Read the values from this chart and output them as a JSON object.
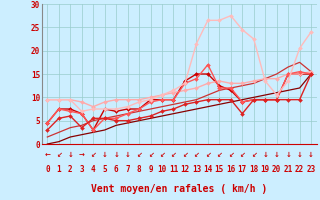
{
  "title": "",
  "xlabel": "Vent moyen/en rafales ( km/h )",
  "xlim_min": -0.5,
  "xlim_max": 23.5,
  "ylim_min": 0,
  "ylim_max": 30,
  "xticks": [
    0,
    1,
    2,
    3,
    4,
    5,
    6,
    7,
    8,
    9,
    10,
    11,
    12,
    13,
    14,
    15,
    16,
    17,
    18,
    19,
    20,
    21,
    22,
    23
  ],
  "yticks": [
    0,
    5,
    10,
    15,
    20,
    25,
    30
  ],
  "bg_color": "#cceeff",
  "grid_color": "#99cccc",
  "series": [
    {
      "x": [
        0,
        1,
        2,
        3,
        4,
        5,
        6,
        7,
        8,
        9,
        10,
        11,
        12,
        13,
        14,
        15,
        16,
        17,
        18,
        19,
        20,
        21,
        22,
        23
      ],
      "y": [
        4.5,
        7.5,
        7.5,
        6.5,
        3.0,
        7.5,
        7.0,
        7.5,
        7.5,
        9.5,
        9.5,
        9.5,
        13.5,
        15.0,
        15.0,
        12.5,
        11.5,
        9.0,
        9.5,
        9.5,
        9.5,
        15.0,
        15.0,
        15.0
      ],
      "color": "#cc0000",
      "lw": 1.0,
      "marker": "D",
      "ms": 2.0
    },
    {
      "x": [
        0,
        1,
        2,
        3,
        4,
        5,
        6,
        7,
        8,
        9,
        10,
        11,
        12,
        13,
        14,
        15,
        16,
        17,
        18,
        19,
        20,
        21,
        22,
        23
      ],
      "y": [
        0.0,
        0.5,
        1.5,
        2.0,
        2.5,
        3.0,
        4.0,
        4.5,
        5.0,
        5.5,
        6.0,
        6.5,
        7.0,
        7.5,
        8.0,
        8.5,
        9.0,
        9.5,
        10.0,
        10.5,
        11.0,
        11.5,
        12.0,
        15.0
      ],
      "color": "#880000",
      "lw": 0.9,
      "marker": null,
      "ms": 0
    },
    {
      "x": [
        0,
        1,
        2,
        3,
        4,
        5,
        6,
        7,
        8,
        9,
        10,
        11,
        12,
        13,
        14,
        15,
        16,
        17,
        18,
        19,
        20,
        21,
        22,
        23
      ],
      "y": [
        1.5,
        2.5,
        3.5,
        4.0,
        5.0,
        5.5,
        6.0,
        6.5,
        7.0,
        7.5,
        8.0,
        8.5,
        9.0,
        9.5,
        10.5,
        11.5,
        12.0,
        12.5,
        13.0,
        14.0,
        15.0,
        16.5,
        17.5,
        15.5
      ],
      "color": "#cc3333",
      "lw": 0.9,
      "marker": null,
      "ms": 0
    },
    {
      "x": [
        0,
        1,
        2,
        3,
        4,
        5,
        6,
        7,
        8,
        9,
        10,
        11,
        12,
        13,
        14,
        15,
        16,
        17,
        18,
        19,
        20,
        21,
        22,
        23
      ],
      "y": [
        9.5,
        9.5,
        9.5,
        9.0,
        8.0,
        9.0,
        9.5,
        9.5,
        9.5,
        10.0,
        10.5,
        11.0,
        11.5,
        12.0,
        13.0,
        13.5,
        13.0,
        13.0,
        13.5,
        14.0,
        14.0,
        15.0,
        15.0,
        15.5
      ],
      "color": "#ffaaaa",
      "lw": 1.0,
      "marker": "D",
      "ms": 2.0
    },
    {
      "x": [
        0,
        1,
        2,
        3,
        4,
        5,
        6,
        7,
        8,
        9,
        10,
        11,
        12,
        13,
        14,
        15,
        16,
        17,
        18,
        19,
        20,
        21,
        22,
        23
      ],
      "y": [
        4.5,
        7.5,
        7.0,
        6.5,
        3.0,
        5.5,
        5.5,
        6.5,
        7.5,
        9.0,
        9.5,
        9.5,
        13.0,
        14.0,
        17.0,
        12.0,
        12.0,
        9.0,
        9.5,
        9.5,
        9.5,
        15.0,
        15.5,
        15.0
      ],
      "color": "#ff5555",
      "lw": 1.0,
      "marker": "D",
      "ms": 2.0
    },
    {
      "x": [
        0,
        1,
        2,
        3,
        4,
        5,
        6,
        7,
        8,
        9,
        10,
        11,
        12,
        13,
        14,
        15,
        16,
        17,
        18,
        19,
        20,
        21,
        22,
        23
      ],
      "y": [
        9.5,
        9.5,
        9.5,
        7.0,
        7.5,
        7.5,
        7.5,
        8.0,
        9.0,
        9.5,
        10.5,
        11.5,
        13.0,
        21.5,
        26.5,
        26.5,
        27.5,
        24.5,
        22.5,
        13.5,
        10.5,
        13.5,
        20.5,
        24.0
      ],
      "color": "#ffbbbb",
      "lw": 1.0,
      "marker": "D",
      "ms": 2.0
    },
    {
      "x": [
        0,
        1,
        2,
        3,
        4,
        5,
        6,
        7,
        8,
        9,
        10,
        11,
        12,
        13,
        14,
        15,
        16,
        17,
        18,
        19,
        20,
        21,
        22,
        23
      ],
      "y": [
        3.0,
        5.5,
        6.0,
        3.5,
        5.5,
        5.5,
        5.0,
        5.0,
        5.5,
        6.0,
        7.0,
        7.5,
        8.5,
        9.0,
        9.5,
        9.5,
        9.5,
        6.5,
        9.5,
        9.5,
        9.5,
        9.5,
        9.5,
        15.0
      ],
      "color": "#dd2222",
      "lw": 1.0,
      "marker": "D",
      "ms": 2.0
    }
  ],
  "wind_arrows": [
    "←",
    "↙",
    "↓",
    "→",
    "↙",
    "↓",
    "↓",
    "↓",
    "↙",
    "↙",
    "↙",
    "↙",
    "↙",
    "↙",
    "↙",
    "↙",
    "↙",
    "↙",
    "↙",
    "↓",
    "↓",
    "↓",
    "↓",
    "↓"
  ],
  "red_color": "#cc0000",
  "tick_fontsize": 5.5,
  "xlabel_fontsize": 7.0
}
